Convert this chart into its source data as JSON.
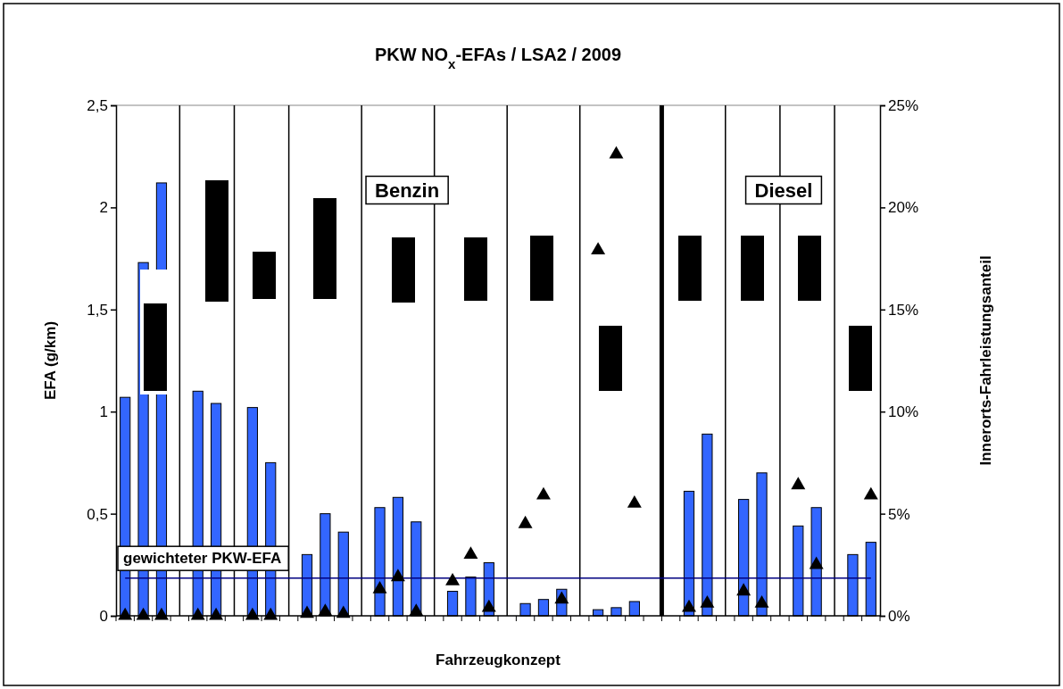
{
  "chart_data": {
    "type": "bar",
    "title": "PKW NO$_{x}$-EFAs / LSA2 / 2009",
    "xlabel": "Fahrzeugkonzept",
    "ylabel": "EFA (g/km)",
    "y2label": "Innerorts-Fahrleistungsanteil",
    "categories": [
      null,
      null,
      null,
      null,
      null,
      null,
      null,
      null,
      null,
      null,
      null,
      null,
      null,
      null,
      null,
      null,
      null,
      null,
      null,
      null,
      null,
      null,
      null,
      null,
      null,
      null,
      null,
      null,
      null,
      null,
      null,
      null,
      null,
      null,
      null,
      null,
      null,
      null,
      null,
      null,
      null,
      null
    ],
    "ylim": [
      0,
      2.5
    ],
    "yticks": [
      0,
      {
        "value": 0.5,
        "label": "0,5"
      },
      1,
      {
        "value": 1.5,
        "label": "1,5"
      },
      2,
      {
        "value": 2.5,
        "label": "2,5"
      }
    ],
    "y2lim": [
      0,
      25
    ],
    "y2ticks": [
      {
        "value": 0,
        "label": "0%"
      },
      {
        "value": 5,
        "label": "5%"
      },
      {
        "value": 10,
        "label": "10%"
      },
      {
        "value": 15,
        "label": "15%"
      },
      {
        "value": 20,
        "label": "20%"
      },
      {
        "value": 25,
        "label": "25%"
      }
    ],
    "grid": "x",
    "series": [
      {
        "color": "#3366ff",
        "values": [
          1.07,
          1.73,
          2.12,
          null,
          1.1,
          1.04,
          null,
          1.02,
          0.75,
          null,
          0.3,
          0.5,
          0.41,
          null,
          0.53,
          0.58,
          0.46,
          null,
          0.12,
          0.19,
          0.26,
          null,
          0.06,
          0.08,
          0.13,
          null,
          0.03,
          0.04,
          0.07,
          null,
          null,
          0.61,
          0.89,
          null,
          0.57,
          0.7,
          null,
          0.44,
          0.53,
          null,
          0.3,
          0.36
        ]
      },
      {
        "type": "scatter",
        "axis": "y2",
        "color": "#000000",
        "marker": "triangle",
        "values": [
          0,
          0,
          0,
          null,
          0,
          0,
          null,
          0,
          0,
          null,
          0.1,
          0.2,
          0.1,
          null,
          1.3,
          1.9,
          0.2,
          null,
          1.7,
          3,
          0.4,
          null,
          4.5,
          5.9,
          0.8,
          null,
          17.9,
          22.6,
          5.5,
          null,
          null,
          0.4,
          0.6,
          null,
          1.2,
          0.6,
          null,
          6.4,
          2.5,
          null,
          null,
          5.9
        ]
      }
    ],
    "ref_lines": [
      {
        "axis": "y",
        "value": 0.185,
        "label": "gewichteter PKW-EFA",
        "color": "#000080"
      }
    ],
    "annotations": [
      "Benzin",
      "Diesel"
    ]
  }
}
